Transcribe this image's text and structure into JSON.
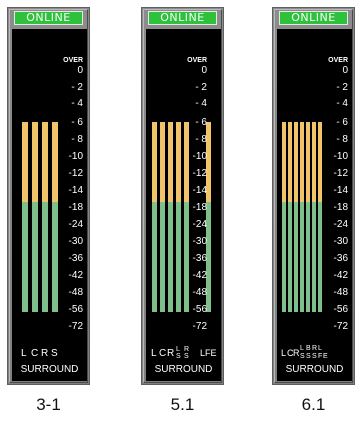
{
  "panels": [
    {
      "status": "ONLINE",
      "caption": "3-1",
      "scale": [
        "OVER",
        "0",
        "- 2",
        "- 4",
        "- 6",
        "- 8",
        "-10",
        "-12",
        "-14",
        "-18",
        "-24",
        "-30",
        "-36",
        "-42",
        "-48",
        "-56",
        "-72"
      ],
      "channels": [
        "L",
        "C",
        "R",
        "S"
      ],
      "surround": "SURROUND",
      "bar_count": 4
    },
    {
      "status": "ONLINE",
      "caption": "5.1",
      "scale": [
        "OVER",
        "0",
        "- 2",
        "- 4",
        "- 6",
        "- 8",
        "-10",
        "-12",
        "-14",
        "-18",
        "-24",
        "-30",
        "-36",
        "-42",
        "-48",
        "-56",
        "-72"
      ],
      "channels": [
        "L",
        "C",
        "R",
        "L",
        "S",
        "R",
        "S",
        "LFE"
      ],
      "surround": "SURROUND",
      "bar_count": 6
    },
    {
      "status": "ONLINE",
      "caption": "6.1",
      "scale": [
        "OVER",
        "0",
        "- 2",
        "- 4",
        "- 6",
        "- 8",
        "-10",
        "-12",
        "-14",
        "-18",
        "-24",
        "-30",
        "-36",
        "-42",
        "-48",
        "-56",
        "-72"
      ],
      "channels": [
        "L",
        "C",
        "R",
        "L",
        "S",
        "B",
        "S",
        "R",
        "S",
        "L",
        "F",
        "E"
      ],
      "surround": "SURROUND",
      "bar_count": 7
    }
  ],
  "colors": {
    "online_bg": "#2ec13c",
    "meter_bg": "#000000",
    "bar_amber": "#f2c46a",
    "bar_green": "#7fbf8c",
    "panel": "#858585"
  }
}
